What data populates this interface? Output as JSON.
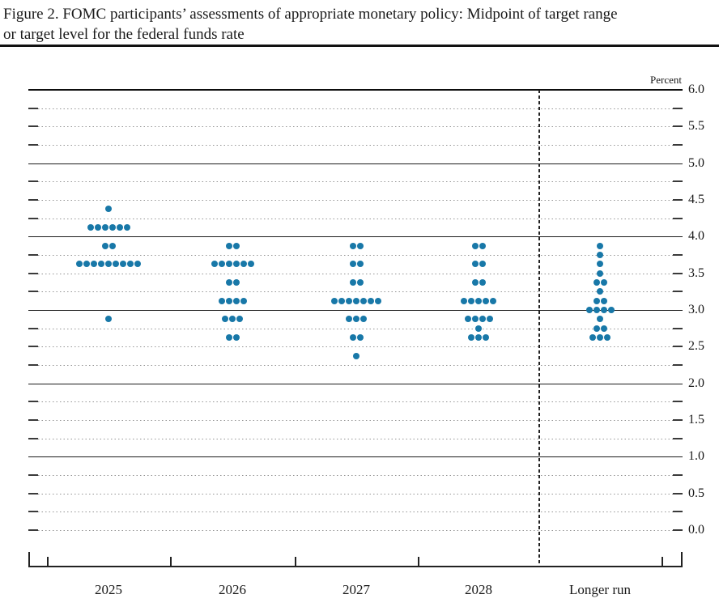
{
  "title": {
    "line1": "Figure 2. FOMC participants’ assessments of appropriate monetary policy: Midpoint of target range",
    "line2": "or target level for the federal funds rate"
  },
  "chart_data": {
    "type": "scatter",
    "subtype": "fomc-dot-plot",
    "unit_label": "Percent",
    "categories": [
      "2025",
      "2026",
      "2027",
      "2028",
      "Longer run"
    ],
    "y_axis": {
      "min": 0.0,
      "max": 6.0,
      "grid_interval": 0.25,
      "label_interval": 0.5,
      "tick_labels": [
        "6.0",
        "5.5",
        "5.0",
        "4.5",
        "4.0",
        "3.5",
        "3.0",
        "2.5",
        "2.0",
        "1.5",
        "1.0",
        "0.5",
        "0.0"
      ],
      "solid_line_values": [
        1.0,
        2.0,
        3.0,
        4.0,
        5.0,
        6.0
      ],
      "grid_style": "dotted-quarters-solid-integers",
      "labels_position": "right"
    },
    "dot_color": "#1878a8",
    "participants_per_column": 19,
    "series": [
      {
        "category": "2025",
        "dots": [
          {
            "rate": 4.375,
            "count": 1
          },
          {
            "rate": 4.125,
            "count": 6
          },
          {
            "rate": 3.875,
            "count": 2
          },
          {
            "rate": 3.625,
            "count": 9
          },
          {
            "rate": 2.875,
            "count": 1
          }
        ]
      },
      {
        "category": "2026",
        "dots": [
          {
            "rate": 3.875,
            "count": 2
          },
          {
            "rate": 3.625,
            "count": 6
          },
          {
            "rate": 3.375,
            "count": 2
          },
          {
            "rate": 3.125,
            "count": 4
          },
          {
            "rate": 2.875,
            "count": 3
          },
          {
            "rate": 2.625,
            "count": 2
          }
        ]
      },
      {
        "category": "2027",
        "dots": [
          {
            "rate": 3.875,
            "count": 2
          },
          {
            "rate": 3.625,
            "count": 2
          },
          {
            "rate": 3.375,
            "count": 2
          },
          {
            "rate": 3.125,
            "count": 7
          },
          {
            "rate": 2.875,
            "count": 3
          },
          {
            "rate": 2.625,
            "count": 2
          },
          {
            "rate": 2.375,
            "count": 1
          }
        ]
      },
      {
        "category": "2028",
        "dots": [
          {
            "rate": 3.875,
            "count": 2
          },
          {
            "rate": 3.625,
            "count": 2
          },
          {
            "rate": 3.375,
            "count": 2
          },
          {
            "rate": 3.125,
            "count": 5
          },
          {
            "rate": 2.875,
            "count": 4
          },
          {
            "rate": 2.75,
            "count": 1
          },
          {
            "rate": 2.625,
            "count": 3
          }
        ]
      },
      {
        "category": "Longer run",
        "dots": [
          {
            "rate": 3.875,
            "count": 1
          },
          {
            "rate": 3.75,
            "count": 1
          },
          {
            "rate": 3.625,
            "count": 1
          },
          {
            "rate": 3.5,
            "count": 1
          },
          {
            "rate": 3.375,
            "count": 2
          },
          {
            "rate": 3.25,
            "count": 1
          },
          {
            "rate": 3.125,
            "count": 2
          },
          {
            "rate": 3.0,
            "count": 4
          },
          {
            "rate": 2.875,
            "count": 1
          },
          {
            "rate": 2.75,
            "count": 2
          },
          {
            "rate": 2.625,
            "count": 3
          }
        ]
      }
    ]
  }
}
